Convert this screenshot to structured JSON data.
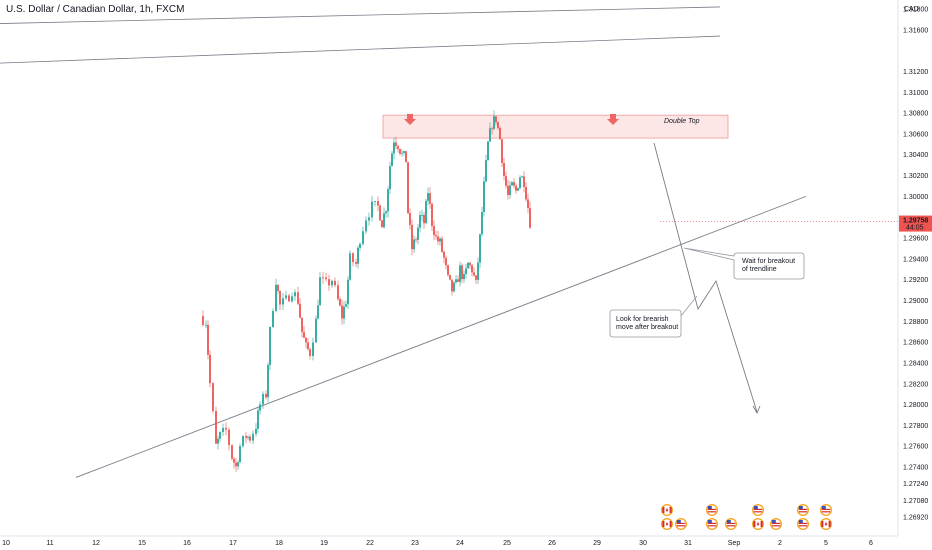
{
  "chart_title": "U.S. Dollar / Canadian Dollar, 1h, FXCM",
  "chart_data": {
    "type": "candlestick",
    "title": "U.S. Dollar / Canadian Dollar, 1h, FXCM",
    "currency": "CAD",
    "yticks": [
      1.318,
      1.316,
      1.312,
      1.31,
      1.308,
      1.306,
      1.304,
      1.302,
      1.3,
      1.296,
      1.294,
      1.292,
      1.29,
      1.288,
      1.286,
      1.284,
      1.282,
      1.28,
      1.278,
      1.276,
      1.274,
      1.2724,
      1.2708,
      1.2692
    ],
    "ytick_labels": [
      "1.31800",
      "1.31600",
      "1.31200",
      "1.31000",
      "1.30800",
      "1.30600",
      "1.30400",
      "1.30200",
      "1.30000",
      "1.29600",
      "1.29400",
      "1.29200",
      "1.29000",
      "1.28800",
      "1.28600",
      "1.28400",
      "1.28200",
      "1.28000",
      "1.27800",
      "1.27600",
      "1.27400",
      "1.27240",
      "1.27080",
      "1.26920"
    ],
    "xticks": [
      "10",
      "11",
      "12",
      "15",
      "16",
      "17",
      "18",
      "19",
      "22",
      "23",
      "24",
      "25",
      "26",
      "29",
      "30",
      "31",
      "Sep",
      "2",
      "5",
      "6"
    ],
    "current_price": "1.29758",
    "countdown": "44:05",
    "price_path": [
      [
        10.0,
        1.2885
      ],
      [
        10.3,
        1.288
      ],
      [
        10.5,
        1.282
      ],
      [
        10.8,
        1.276
      ],
      [
        11.0,
        1.277
      ],
      [
        11.3,
        1.2775
      ],
      [
        11.6,
        1.275
      ],
      [
        11.8,
        1.274
      ],
      [
        12.0,
        1.276
      ],
      [
        12.3,
        1.277
      ],
      [
        12.5,
        1.2768
      ],
      [
        12.8,
        1.278
      ],
      [
        13.0,
        1.28
      ],
      [
        13.3,
        1.281
      ],
      [
        13.5,
        1.287
      ],
      [
        13.8,
        1.292
      ],
      [
        14.0,
        1.2895
      ],
      [
        14.3,
        1.29
      ],
      [
        14.6,
        1.291
      ],
      [
        14.9,
        1.29
      ],
      [
        15.1,
        1.287
      ],
      [
        15.3,
        1.2855
      ],
      [
        15.5,
        1.285
      ],
      [
        15.8,
        1.288
      ],
      [
        16.0,
        1.292
      ],
      [
        16.3,
        1.2915
      ],
      [
        16.6,
        1.292
      ],
      [
        16.9,
        1.29
      ],
      [
        17.1,
        1.2885
      ],
      [
        17.3,
        1.29
      ],
      [
        17.5,
        1.294
      ],
      [
        17.8,
        1.2935
      ],
      [
        18.0,
        1.296
      ],
      [
        18.3,
        1.298
      ],
      [
        18.6,
        1.299
      ],
      [
        18.9,
        1.299
      ],
      [
        19.1,
        1.2975
      ],
      [
        19.3,
        1.299
      ],
      [
        19.5,
        1.303
      ],
      [
        19.7,
        1.3055
      ],
      [
        19.9,
        1.305
      ],
      [
        20.1,
        1.304
      ],
      [
        20.3,
        1.3035
      ],
      [
        20.4,
        1.2985
      ],
      [
        20.6,
        1.295
      ],
      [
        20.8,
        1.296
      ],
      [
        21.0,
        1.298
      ],
      [
        21.2,
        1.2975
      ],
      [
        21.4,
        1.3005
      ],
      [
        21.6,
        1.2975
      ],
      [
        21.8,
        1.296
      ],
      [
        22.0,
        1.2955
      ],
      [
        22.2,
        1.294
      ],
      [
        22.4,
        1.292
      ],
      [
        22.6,
        1.291
      ],
      [
        22.8,
        1.2915
      ],
      [
        23.0,
        1.293
      ],
      [
        23.2,
        1.292
      ],
      [
        23.4,
        1.2935
      ],
      [
        23.6,
        1.293
      ],
      [
        23.8,
        1.2915
      ],
      [
        24.0,
        1.296
      ],
      [
        24.2,
        1.301
      ],
      [
        24.4,
        1.305
      ],
      [
        24.6,
        1.307
      ],
      [
        24.8,
        1.3075
      ],
      [
        25.0,
        1.3055
      ],
      [
        25.2,
        1.302
      ],
      [
        25.4,
        1.3
      ],
      [
        25.6,
        1.301
      ],
      [
        25.8,
        1.3005
      ],
      [
        26.0,
        1.302
      ],
      [
        26.2,
        1.3015
      ],
      [
        26.4,
        1.299
      ],
      [
        26.5,
        1.29758
      ]
    ],
    "supply_zone_price": [
      1.3056,
      1.3078
    ],
    "trendline_price": [
      [
        11.7,
        1.273
      ],
      [
        30.5,
        1.3
      ]
    ],
    "upper_line_1_price": [
      [
        0.0,
        1.3166
      ],
      [
        36.0,
        1.3182
      ]
    ],
    "upper_line_2_price": [
      [
        0.0,
        1.3128
      ],
      [
        36.0,
        1.3154
      ]
    ],
    "projection_price": [
      [
        24.9,
        1.306
      ],
      [
        26.1,
        1.2945
      ],
      [
        26.6,
        1.2905
      ],
      [
        27.3,
        1.292
      ],
      [
        28.7,
        1.2795
      ]
    ],
    "top_markers_price": [
      [
        18.5,
        1.3077
      ],
      [
        24.7,
        1.3077
      ]
    ],
    "annotations": {
      "double_top": "Double Top",
      "breakout": [
        "Wait for breakout",
        "of trendline"
      ],
      "bearish": [
        "Look for brearish",
        "move after breakout"
      ]
    },
    "colors": {
      "up": "#26a69a",
      "down": "#ef5350",
      "zone_fill": "#fde6e6",
      "zone_stroke": "#ef9a9a",
      "line": "#787b86",
      "marker": "#f06666",
      "price_label": "#ef5350"
    },
    "event_icons": [
      "flag-ca-icon",
      "flag-ca-icon",
      "flag-us-icon",
      "flag-us-icon",
      "flag-us-icon",
      "flag-us-icon",
      "flag-us-icon",
      "flag-ca-icon",
      "flag-us-icon",
      "flag-us-icon",
      "flag-us-icon",
      "flag-us-icon",
      "flag-ca-icon"
    ]
  }
}
